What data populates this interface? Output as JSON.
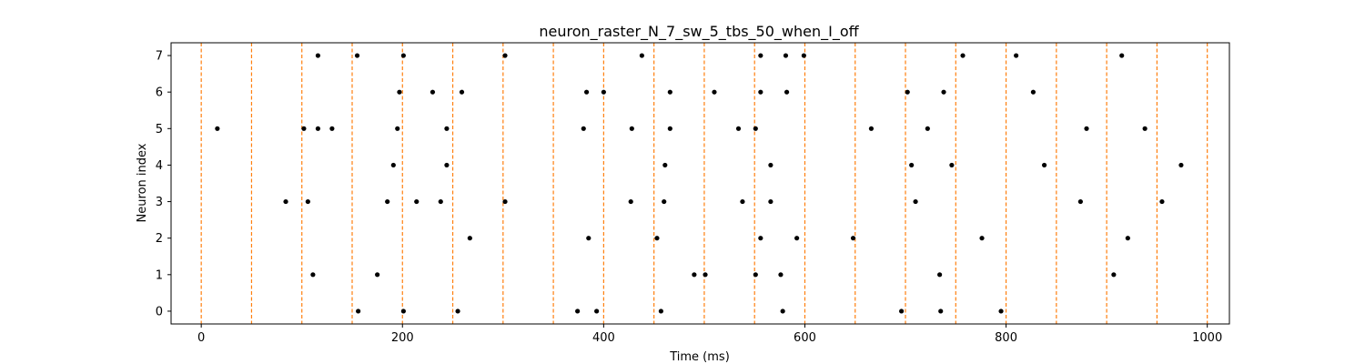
{
  "chart_data": {
    "type": "scatter",
    "title": "neuron_raster_N_7_sw_5_tbs_50_when_I_off",
    "xlabel": "Time (ms)",
    "ylabel": "Neuron index",
    "xlim": [
      -30,
      1022
    ],
    "ylim": [
      -0.35,
      7.35
    ],
    "xticks": [
      0,
      200,
      400,
      600,
      800,
      1000
    ],
    "yticks": [
      0,
      1,
      2,
      3,
      4,
      5,
      6,
      7
    ],
    "grid": false,
    "vlines": {
      "x": [
        0,
        50,
        100,
        150,
        200,
        250,
        300,
        350,
        400,
        450,
        500,
        550,
        600,
        650,
        700,
        750,
        800,
        850,
        900,
        950,
        1000
      ],
      "color": "#ff7f0e",
      "style": "dashed"
    },
    "series": [
      {
        "name": "neuron 0",
        "y": 0,
        "x": [
          156,
          201,
          255,
          374,
          393,
          457,
          578,
          696,
          735,
          795
        ]
      },
      {
        "name": "neuron 1",
        "y": 1,
        "x": [
          111,
          175,
          490,
          501,
          551,
          576,
          734,
          907
        ]
      },
      {
        "name": "neuron 2",
        "y": 2,
        "x": [
          267,
          385,
          453,
          556,
          592,
          648,
          776,
          921
        ]
      },
      {
        "name": "neuron 3",
        "y": 3,
        "x": [
          84,
          106,
          185,
          214,
          238,
          302,
          427,
          460,
          538,
          566,
          710,
          874,
          955
        ]
      },
      {
        "name": "neuron 4",
        "y": 4,
        "x": [
          191,
          244,
          461,
          566,
          706,
          746,
          838,
          974
        ]
      },
      {
        "name": "neuron 5",
        "y": 5,
        "x": [
          16,
          102,
          116,
          130,
          195,
          244,
          380,
          428,
          466,
          534,
          551,
          666,
          722,
          880,
          938
        ]
      },
      {
        "name": "neuron 6",
        "y": 6,
        "x": [
          197,
          230,
          259,
          383,
          400,
          466,
          510,
          556,
          582,
          702,
          738,
          827
        ]
      },
      {
        "name": "neuron 7",
        "y": 7,
        "x": [
          116,
          155,
          201,
          302,
          438,
          556,
          581,
          599,
          757,
          810,
          915
        ]
      }
    ],
    "marker_color": "#000000"
  }
}
